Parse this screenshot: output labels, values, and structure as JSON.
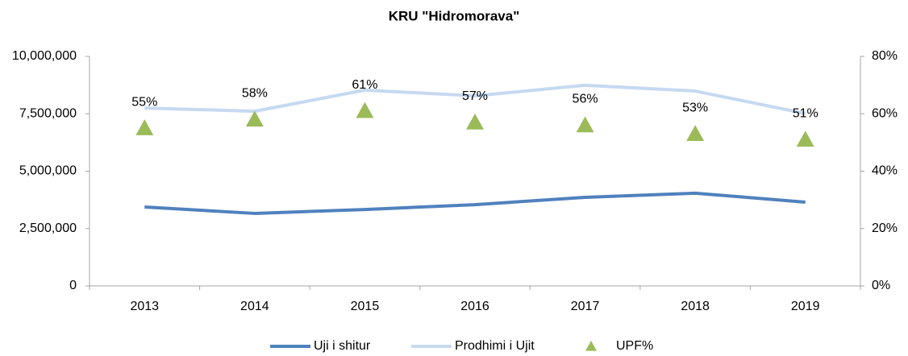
{
  "chart_data": {
    "type": "line",
    "title": "KRU \"Hidromorava\"",
    "categories": [
      "2013",
      "2014",
      "2015",
      "2016",
      "2017",
      "2018",
      "2019"
    ],
    "series": [
      {
        "name": "Uji i shitur",
        "color": "#4f81bd",
        "values": [
          3440000,
          3160000,
          3330000,
          3540000,
          3860000,
          4040000,
          3650000
        ]
      },
      {
        "name": "Prodhimi i Ujit",
        "color": "#c6d9f1",
        "values": [
          7750000,
          7610000,
          8530000,
          8280000,
          8740000,
          8490000,
          7510000
        ]
      },
      {
        "name": "UPF%",
        "color": "#9bbb59",
        "axis": "y2",
        "marker": "triangle",
        "values": [
          55,
          58,
          61,
          57,
          56,
          53,
          51
        ],
        "value_labels": [
          "55%",
          "58%",
          "61%",
          "57%",
          "56%",
          "53%",
          "51%"
        ]
      }
    ],
    "ylim": [
      0,
      10000000
    ],
    "yticks": [
      0,
      {
        "value": 2500000,
        "label": "2,500,000"
      },
      {
        "value": 5000000,
        "label": "5,000,000"
      },
      {
        "value": 7500000,
        "label": "7,500,000"
      },
      {
        "value": 10000000,
        "label": "10,000,000"
      }
    ],
    "y2lim": [
      0,
      80
    ],
    "y2ticks": [
      {
        "value": 0,
        "label": "0%"
      },
      {
        "value": 20,
        "label": "20%"
      },
      {
        "value": 40,
        "label": "40%"
      },
      {
        "value": 60,
        "label": "60%"
      },
      {
        "value": 80,
        "label": "80%"
      }
    ],
    "grid": false,
    "legend": "bottom"
  }
}
